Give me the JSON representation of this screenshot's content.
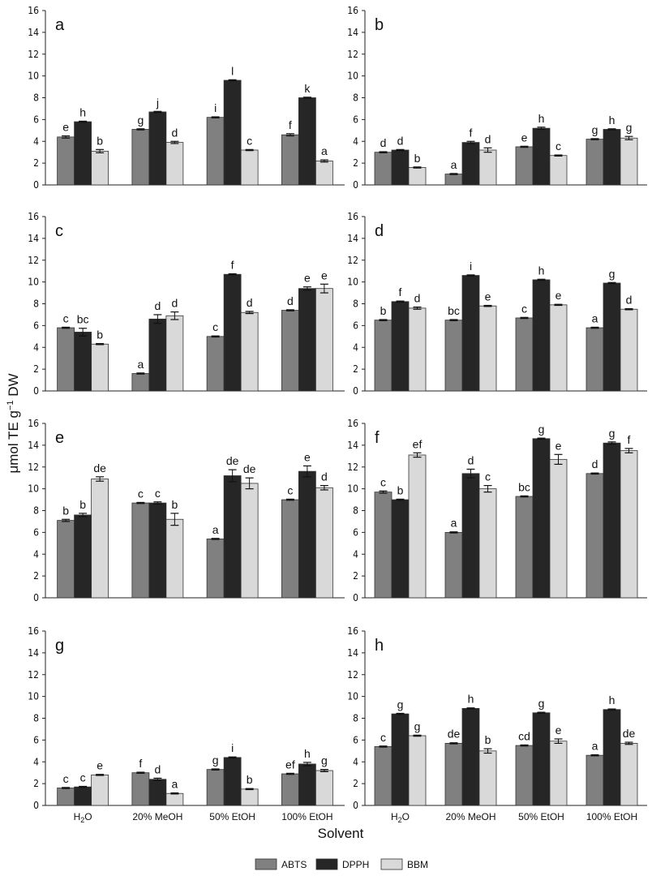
{
  "chart_data": {
    "type": "bar",
    "ylabel": "μmol TE g⁻¹ DW",
    "xlabel": "Solvent",
    "ylim": [
      0,
      16
    ],
    "yticks": [
      0,
      2,
      4,
      6,
      8,
      10,
      12,
      14,
      16
    ],
    "categories": [
      "H2O",
      "20% MeOH",
      "50% EtOH",
      "100% EtOH"
    ],
    "series_names": [
      "ABTS",
      "DPPH",
      "BBM"
    ],
    "colors": {
      "ABTS": "#808080",
      "DPPH": "#262626",
      "BBM": "#d9d9d9"
    },
    "legend_position": "bottom-center",
    "panels": [
      {
        "label": "a",
        "values": {
          "ABTS": [
            4.4,
            5.1,
            6.2,
            4.6
          ],
          "DPPH": [
            5.8,
            6.7,
            9.6,
            8.0
          ],
          "BBM": [
            3.1,
            3.9,
            3.2,
            2.2
          ]
        },
        "errors": {
          "ABTS": [
            0.1,
            0.05,
            0.05,
            0.1
          ],
          "DPPH": [
            0.05,
            0.05,
            0.05,
            0.05
          ],
          "BBM": [
            0.15,
            0.1,
            0.05,
            0.1
          ]
        },
        "letters": {
          "ABTS": [
            "e",
            "g",
            "i",
            "f"
          ],
          "DPPH": [
            "h",
            "j",
            "l",
            "k"
          ],
          "BBM": [
            "b",
            "d",
            "c",
            "a"
          ]
        }
      },
      {
        "label": "b",
        "values": {
          "ABTS": [
            3.0,
            1.0,
            3.5,
            4.2
          ],
          "DPPH": [
            3.2,
            3.9,
            5.2,
            5.1
          ],
          "BBM": [
            1.6,
            3.2,
            2.7,
            4.3
          ]
        },
        "errors": {
          "ABTS": [
            0.05,
            0.05,
            0.05,
            0.05
          ],
          "DPPH": [
            0.05,
            0.1,
            0.1,
            0.05
          ],
          "BBM": [
            0.05,
            0.2,
            0.05,
            0.15
          ]
        },
        "letters": {
          "ABTS": [
            "d",
            "a",
            "e",
            "g"
          ],
          "DPPH": [
            "d",
            "f",
            "h",
            "h"
          ],
          "BBM": [
            "b",
            "d",
            "c",
            "g"
          ]
        }
      },
      {
        "label": "c",
        "values": {
          "ABTS": [
            5.8,
            1.6,
            5.0,
            7.4
          ],
          "DPPH": [
            5.4,
            6.6,
            10.7,
            9.4
          ],
          "BBM": [
            4.3,
            6.9,
            7.2,
            9.4
          ]
        },
        "errors": {
          "ABTS": [
            0.05,
            0.05,
            0.05,
            0.05
          ],
          "DPPH": [
            0.35,
            0.4,
            0.05,
            0.15
          ],
          "BBM": [
            0.05,
            0.35,
            0.1,
            0.4
          ]
        },
        "letters": {
          "ABTS": [
            "c",
            "a",
            "c",
            "d"
          ],
          "DPPH": [
            "bc",
            "d",
            "f",
            "e"
          ],
          "BBM": [
            "b",
            "d",
            "d",
            "e"
          ]
        }
      },
      {
        "label": "d",
        "values": {
          "ABTS": [
            6.5,
            6.5,
            6.7,
            5.8
          ],
          "DPPH": [
            8.2,
            10.6,
            10.2,
            9.9
          ],
          "BBM": [
            7.6,
            7.8,
            7.9,
            7.5
          ]
        },
        "errors": {
          "ABTS": [
            0.05,
            0.05,
            0.05,
            0.05
          ],
          "DPPH": [
            0.05,
            0.05,
            0.05,
            0.05
          ],
          "BBM": [
            0.1,
            0.05,
            0.05,
            0.05
          ]
        },
        "letters": {
          "ABTS": [
            "b",
            "bc",
            "c",
            "a"
          ],
          "DPPH": [
            "f",
            "i",
            "h",
            "g"
          ],
          "BBM": [
            "d",
            "e",
            "e",
            "d"
          ]
        }
      },
      {
        "label": "e",
        "values": {
          "ABTS": [
            7.1,
            8.7,
            5.4,
            9.0
          ],
          "DPPH": [
            7.6,
            8.7,
            11.2,
            11.6
          ],
          "BBM": [
            10.9,
            7.2,
            10.5,
            10.1
          ]
        },
        "errors": {
          "ABTS": [
            0.1,
            0.05,
            0.05,
            0.05
          ],
          "DPPH": [
            0.15,
            0.1,
            0.55,
            0.5
          ],
          "BBM": [
            0.2,
            0.55,
            0.5,
            0.2
          ]
        },
        "letters": {
          "ABTS": [
            "b",
            "c",
            "a",
            "c"
          ],
          "DPPH": [
            "b",
            "c",
            "de",
            "e"
          ],
          "BBM": [
            "de",
            "b",
            "de",
            "d"
          ]
        }
      },
      {
        "label": "f",
        "values": {
          "ABTS": [
            9.7,
            6.0,
            9.3,
            11.4
          ],
          "DPPH": [
            9.0,
            11.4,
            14.6,
            14.2
          ],
          "BBM": [
            13.1,
            10.0,
            12.7,
            13.5
          ]
        },
        "errors": {
          "ABTS": [
            0.1,
            0.05,
            0.05,
            0.05
          ],
          "DPPH": [
            0.05,
            0.4,
            0.05,
            0.1
          ],
          "BBM": [
            0.2,
            0.3,
            0.45,
            0.2
          ]
        },
        "letters": {
          "ABTS": [
            "c",
            "a",
            "bc",
            "d"
          ],
          "DPPH": [
            "b",
            "d",
            "g",
            "g"
          ],
          "BBM": [
            "ef",
            "c",
            "e",
            "f"
          ]
        }
      },
      {
        "label": "g",
        "values": {
          "ABTS": [
            1.6,
            3.0,
            3.3,
            2.9
          ],
          "DPPH": [
            1.7,
            2.4,
            4.4,
            3.8
          ],
          "BBM": [
            2.8,
            1.1,
            1.5,
            3.2
          ]
        },
        "errors": {
          "ABTS": [
            0.05,
            0.05,
            0.05,
            0.05
          ],
          "DPPH": [
            0.05,
            0.1,
            0.05,
            0.15
          ],
          "BBM": [
            0.05,
            0.05,
            0.05,
            0.1
          ]
        },
        "letters": {
          "ABTS": [
            "c",
            "f",
            "g",
            "ef"
          ],
          "DPPH": [
            "c",
            "d",
            "i",
            "h"
          ],
          "BBM": [
            "e",
            "a",
            "b",
            "g"
          ]
        }
      },
      {
        "label": "h",
        "values": {
          "ABTS": [
            5.4,
            5.7,
            5.5,
            4.6
          ],
          "DPPH": [
            8.4,
            8.9,
            8.5,
            8.8
          ],
          "BBM": [
            6.4,
            5.0,
            5.9,
            5.7
          ]
        },
        "errors": {
          "ABTS": [
            0.05,
            0.05,
            0.05,
            0.05
          ],
          "DPPH": [
            0.05,
            0.05,
            0.05,
            0.05
          ],
          "BBM": [
            0.05,
            0.2,
            0.2,
            0.1
          ]
        },
        "letters": {
          "ABTS": [
            "c",
            "de",
            "cd",
            "a"
          ],
          "DPPH": [
            "g",
            "h",
            "g",
            "h"
          ],
          "BBM": [
            "g",
            "b",
            "e",
            "de"
          ]
        }
      }
    ]
  }
}
